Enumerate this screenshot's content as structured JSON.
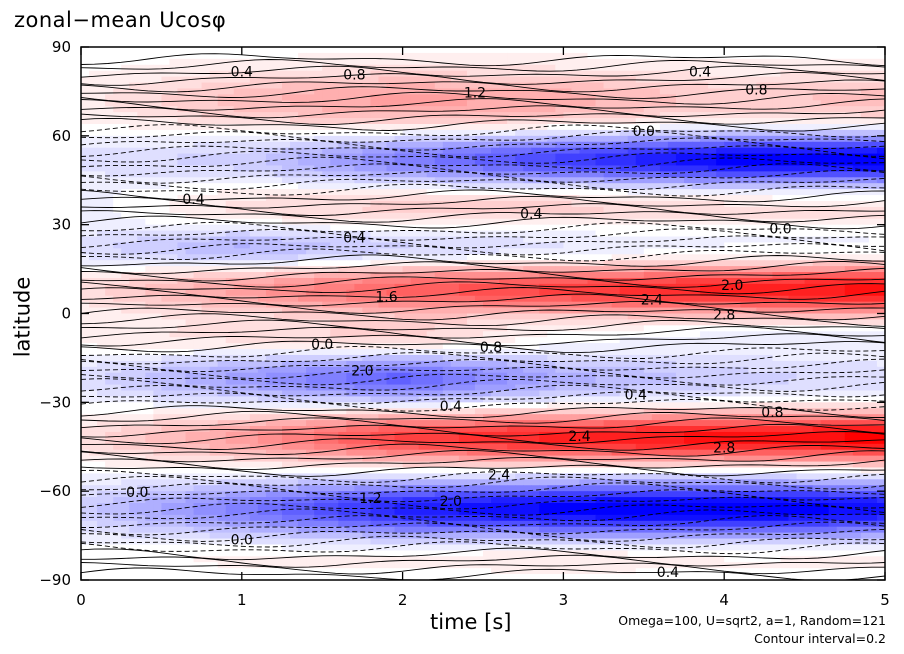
{
  "chart_data": {
    "type": "heatmap",
    "title": "zonal−mean Ucosφ",
    "xlabel": "time [s]",
    "ylabel": "latitude",
    "xlim": [
      0,
      5
    ],
    "ylim": [
      -90,
      90
    ],
    "x_ticks": [
      "0",
      "1",
      "2",
      "3",
      "4",
      "5"
    ],
    "y_ticks": [
      "90",
      "60",
      "30",
      "0",
      "−30",
      "−60",
      "−90"
    ],
    "colormap": {
      "negative": "#0000ff",
      "zero": "#ffffff",
      "positive": "#ff0000"
    },
    "contour_interval": 0.2,
    "bands": [
      {
        "lat": 72,
        "width": 10,
        "t_values": [
          0.2,
          0.8,
          1.2,
          1.0,
          0.6,
          0.8
        ]
      },
      {
        "lat": 52,
        "width": 8,
        "t_values": [
          -0.4,
          -0.6,
          -1.6,
          -2.4,
          -3.2,
          -3.4
        ]
      },
      {
        "lat": 36,
        "width": 7,
        "t_values": [
          -0.2,
          0.4,
          0.6,
          0.6,
          0.4,
          0.4
        ]
      },
      {
        "lat": 22,
        "width": 7,
        "t_values": [
          -0.4,
          -1.0,
          -0.6,
          -0.4,
          -0.2,
          -0.2
        ]
      },
      {
        "lat": 8,
        "width": 8,
        "t_values": [
          0.4,
          1.2,
          2.0,
          2.4,
          2.8,
          3.0
        ]
      },
      {
        "lat": -8,
        "width": 6,
        "t_values": [
          0.2,
          0.4,
          0.6,
          0.0,
          -0.2,
          -0.2
        ]
      },
      {
        "lat": -22,
        "width": 8,
        "t_values": [
          -0.4,
          -1.2,
          -2.0,
          -1.0,
          -0.6,
          -0.4
        ]
      },
      {
        "lat": -42,
        "width": 8,
        "t_values": [
          0.4,
          1.2,
          2.4,
          2.8,
          3.0,
          3.2
        ]
      },
      {
        "lat": -66,
        "width": 9,
        "t_values": [
          -0.6,
          -1.6,
          -2.8,
          -3.2,
          -3.4,
          -3.0
        ]
      },
      {
        "lat": -82,
        "width": 5,
        "t_values": [
          0.0,
          0.2,
          0.2,
          0.4,
          0.2,
          0.2
        ]
      }
    ],
    "contour_labels": [
      {
        "text": "0.4",
        "t": 3.85,
        "lat": 80
      },
      {
        "text": "0.8",
        "t": 4.2,
        "lat": 74
      },
      {
        "text": "1.2",
        "t": 2.45,
        "lat": 73
      },
      {
        "text": "0.8",
        "t": 1.7,
        "lat": 79
      },
      {
        "text": "0.4",
        "t": 1.0,
        "lat": 80
      },
      {
        "text": "0.0",
        "t": 3.5,
        "lat": 60
      },
      {
        "text": "0.4",
        "t": 0.7,
        "lat": 37
      },
      {
        "text": "0.4",
        "t": 2.8,
        "lat": 32
      },
      {
        "text": "0.4",
        "t": 1.7,
        "lat": 24
      },
      {
        "text": "0.0",
        "t": 4.35,
        "lat": 27
      },
      {
        "text": "1.6",
        "t": 1.9,
        "lat": 4
      },
      {
        "text": "2.0",
        "t": 4.05,
        "lat": 8
      },
      {
        "text": "2.4",
        "t": 3.55,
        "lat": 3
      },
      {
        "text": "2.8",
        "t": 4.0,
        "lat": -2
      },
      {
        "text": "0.0",
        "t": 1.5,
        "lat": -12
      },
      {
        "text": "0.8",
        "t": 2.55,
        "lat": -13
      },
      {
        "text": "2.0",
        "t": 1.75,
        "lat": -21
      },
      {
        "text": "0.4",
        "t": 2.3,
        "lat": -33
      },
      {
        "text": "0.4",
        "t": 3.45,
        "lat": -29
      },
      {
        "text": "0.8",
        "t": 4.3,
        "lat": -35
      },
      {
        "text": "2.4",
        "t": 3.1,
        "lat": -43
      },
      {
        "text": "2.8",
        "t": 4.0,
        "lat": -47
      },
      {
        "text": "2.4",
        "t": 2.6,
        "lat": -56
      },
      {
        "text": "2.0",
        "t": 2.3,
        "lat": -65
      },
      {
        "text": "1.2",
        "t": 1.8,
        "lat": -64
      },
      {
        "text": "0.0",
        "t": 0.35,
        "lat": -62
      },
      {
        "text": "0.0",
        "t": 1.0,
        "lat": -78
      },
      {
        "text": "0.4",
        "t": 3.65,
        "lat": -89
      }
    ]
  },
  "footnotes": {
    "params": "Omega=100, U=sqrt2, a=1, Random=121",
    "contour": "Contour interval=0.2"
  }
}
